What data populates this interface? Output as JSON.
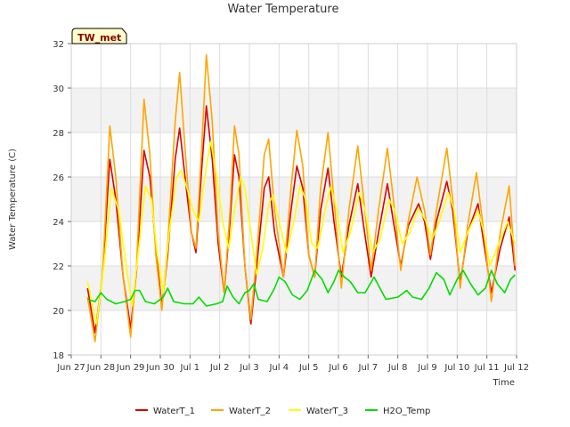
{
  "chart_data": {
    "type": "line",
    "title": "Water Temperature",
    "xlabel": "Time",
    "ylabel": "Water Temperature (C)",
    "badge": "TW_met",
    "x_ticks": [
      "Jun 27",
      "Jun 28",
      "Jun 29",
      "Jun 30",
      "Jul 1",
      "Jul 2",
      "Jul 3",
      "Jul 4",
      "Jul 5",
      "Jul 6",
      "Jul 7",
      "Jul 8",
      "Jul 9",
      "Jul 10",
      "Jul 11",
      "Jul 12"
    ],
    "y_ticks": [
      18,
      20,
      22,
      24,
      26,
      28,
      30,
      32
    ],
    "xlim": [
      0,
      15
    ],
    "ylim": [
      18,
      32
    ],
    "grid": true,
    "legend_position": "bottom",
    "series": [
      {
        "name": "WaterT_1",
        "color": "#dd0000",
        "points": [
          [
            0.55,
            21.0
          ],
          [
            0.8,
            19.0
          ],
          [
            1.05,
            21.5
          ],
          [
            1.3,
            26.8
          ],
          [
            1.5,
            25.0
          ],
          [
            1.75,
            21.5
          ],
          [
            2.0,
            19.2
          ],
          [
            2.2,
            21.8
          ],
          [
            2.45,
            27.2
          ],
          [
            2.65,
            26.0
          ],
          [
            2.85,
            22.8
          ],
          [
            3.05,
            20.2
          ],
          [
            3.25,
            22.5
          ],
          [
            3.5,
            26.8
          ],
          [
            3.65,
            28.2
          ],
          [
            3.85,
            25.8
          ],
          [
            4.05,
            23.5
          ],
          [
            4.2,
            22.6
          ],
          [
            4.4,
            26.5
          ],
          [
            4.55,
            29.2
          ],
          [
            4.75,
            26.8
          ],
          [
            4.95,
            23.0
          ],
          [
            5.15,
            20.8
          ],
          [
            5.35,
            24.0
          ],
          [
            5.5,
            27.0
          ],
          [
            5.65,
            26.0
          ],
          [
            5.85,
            22.0
          ],
          [
            6.05,
            19.4
          ],
          [
            6.25,
            22.0
          ],
          [
            6.5,
            25.5
          ],
          [
            6.65,
            26.0
          ],
          [
            6.85,
            23.5
          ],
          [
            7.15,
            21.5
          ],
          [
            7.4,
            24.5
          ],
          [
            7.6,
            26.5
          ],
          [
            7.8,
            25.5
          ],
          [
            8.0,
            22.5
          ],
          [
            8.2,
            21.5
          ],
          [
            8.4,
            24.5
          ],
          [
            8.65,
            26.4
          ],
          [
            8.85,
            24.0
          ],
          [
            9.1,
            21.5
          ],
          [
            9.35,
            23.8
          ],
          [
            9.65,
            25.7
          ],
          [
            9.85,
            23.8
          ],
          [
            10.1,
            21.5
          ],
          [
            10.35,
            23.5
          ],
          [
            10.65,
            25.7
          ],
          [
            10.85,
            24.0
          ],
          [
            11.1,
            22.0
          ],
          [
            11.35,
            23.8
          ],
          [
            11.7,
            24.8
          ],
          [
            11.9,
            24.0
          ],
          [
            12.1,
            22.3
          ],
          [
            12.3,
            24.0
          ],
          [
            12.65,
            25.8
          ],
          [
            12.85,
            24.5
          ],
          [
            13.1,
            21.2
          ],
          [
            13.35,
            23.5
          ],
          [
            13.7,
            24.8
          ],
          [
            13.9,
            23.0
          ],
          [
            14.15,
            20.8
          ],
          [
            14.45,
            22.8
          ],
          [
            14.75,
            24.2
          ],
          [
            14.95,
            21.8
          ]
        ]
      },
      {
        "name": "WaterT_2",
        "color": "#ffa500",
        "points": [
          [
            0.55,
            20.6
          ],
          [
            0.8,
            18.6
          ],
          [
            1.05,
            21.5
          ],
          [
            1.3,
            28.3
          ],
          [
            1.5,
            26.0
          ],
          [
            1.75,
            21.5
          ],
          [
            2.0,
            18.8
          ],
          [
            2.2,
            22.0
          ],
          [
            2.45,
            29.5
          ],
          [
            2.65,
            27.0
          ],
          [
            2.85,
            22.5
          ],
          [
            3.05,
            20.0
          ],
          [
            3.25,
            23.0
          ],
          [
            3.5,
            28.5
          ],
          [
            3.65,
            30.7
          ],
          [
            3.85,
            27.0
          ],
          [
            4.05,
            23.5
          ],
          [
            4.2,
            22.8
          ],
          [
            4.4,
            27.5
          ],
          [
            4.55,
            31.5
          ],
          [
            4.75,
            28.5
          ],
          [
            4.95,
            23.5
          ],
          [
            5.15,
            20.8
          ],
          [
            5.35,
            24.5
          ],
          [
            5.5,
            28.3
          ],
          [
            5.65,
            27.0
          ],
          [
            5.85,
            22.0
          ],
          [
            6.05,
            19.6
          ],
          [
            6.25,
            22.5
          ],
          [
            6.5,
            27.0
          ],
          [
            6.65,
            27.7
          ],
          [
            6.85,
            24.5
          ],
          [
            7.15,
            21.5
          ],
          [
            7.4,
            25.5
          ],
          [
            7.6,
            28.1
          ],
          [
            7.8,
            26.5
          ],
          [
            8.0,
            22.5
          ],
          [
            8.2,
            21.5
          ],
          [
            8.4,
            25.5
          ],
          [
            8.65,
            28.0
          ],
          [
            8.85,
            25.0
          ],
          [
            9.1,
            21.0
          ],
          [
            9.35,
            24.5
          ],
          [
            9.65,
            27.4
          ],
          [
            9.85,
            25.0
          ],
          [
            10.1,
            21.8
          ],
          [
            10.35,
            24.5
          ],
          [
            10.65,
            27.3
          ],
          [
            10.85,
            25.0
          ],
          [
            11.1,
            21.8
          ],
          [
            11.35,
            24.0
          ],
          [
            11.65,
            26.0
          ],
          [
            11.9,
            24.5
          ],
          [
            12.1,
            22.5
          ],
          [
            12.3,
            24.5
          ],
          [
            12.65,
            27.3
          ],
          [
            12.85,
            25.0
          ],
          [
            13.1,
            21.0
          ],
          [
            13.35,
            23.8
          ],
          [
            13.65,
            26.2
          ],
          [
            13.9,
            23.5
          ],
          [
            14.15,
            20.4
          ],
          [
            14.45,
            23.5
          ],
          [
            14.75,
            25.6
          ],
          [
            14.95,
            22.0
          ]
        ]
      },
      {
        "name": "WaterT_3",
        "color": "#ffff00",
        "points": [
          [
            0.55,
            21.3
          ],
          [
            0.85,
            19.4
          ],
          [
            1.1,
            22.0
          ],
          [
            1.35,
            25.5
          ],
          [
            1.6,
            24.5
          ],
          [
            1.85,
            22.0
          ],
          [
            2.05,
            20.2
          ],
          [
            2.25,
            22.5
          ],
          [
            2.5,
            25.6
          ],
          [
            2.7,
            25.0
          ],
          [
            2.9,
            22.5
          ],
          [
            3.1,
            20.8
          ],
          [
            3.3,
            23.5
          ],
          [
            3.55,
            26.0
          ],
          [
            3.7,
            26.3
          ],
          [
            3.9,
            25.5
          ],
          [
            4.1,
            24.5
          ],
          [
            4.3,
            24.0
          ],
          [
            4.55,
            26.5
          ],
          [
            4.7,
            27.6
          ],
          [
            4.9,
            26.0
          ],
          [
            5.1,
            24.0
          ],
          [
            5.3,
            22.8
          ],
          [
            5.5,
            24.5
          ],
          [
            5.7,
            26.0
          ],
          [
            5.85,
            25.5
          ],
          [
            6.05,
            23.5
          ],
          [
            6.25,
            21.6
          ],
          [
            6.45,
            22.8
          ],
          [
            6.65,
            24.8
          ],
          [
            6.8,
            25.2
          ],
          [
            7.0,
            24.0
          ],
          [
            7.25,
            22.6
          ],
          [
            7.5,
            24.0
          ],
          [
            7.7,
            25.6
          ],
          [
            7.9,
            25.0
          ],
          [
            8.1,
            23.0
          ],
          [
            8.3,
            22.8
          ],
          [
            8.55,
            24.5
          ],
          [
            8.75,
            25.6
          ],
          [
            8.95,
            24.5
          ],
          [
            9.15,
            22.6
          ],
          [
            9.4,
            23.5
          ],
          [
            9.7,
            25.3
          ],
          [
            9.9,
            24.5
          ],
          [
            10.15,
            22.6
          ],
          [
            10.4,
            23.2
          ],
          [
            10.7,
            25.0
          ],
          [
            10.9,
            24.5
          ],
          [
            11.15,
            23.0
          ],
          [
            11.4,
            23.5
          ],
          [
            11.7,
            24.6
          ],
          [
            11.95,
            24.0
          ],
          [
            12.15,
            23.2
          ],
          [
            12.4,
            24.0
          ],
          [
            12.7,
            25.3
          ],
          [
            12.9,
            24.5
          ],
          [
            13.1,
            22.6
          ],
          [
            13.35,
            23.5
          ],
          [
            13.7,
            24.5
          ],
          [
            13.9,
            23.5
          ],
          [
            14.1,
            22.0
          ],
          [
            14.4,
            23.0
          ],
          [
            14.7,
            24.0
          ],
          [
            14.95,
            23.0
          ]
        ]
      },
      {
        "name": "H2O_Temp",
        "color": "#00dd00",
        "points": [
          [
            0.55,
            20.5
          ],
          [
            0.8,
            20.4
          ],
          [
            1.0,
            20.8
          ],
          [
            1.2,
            20.5
          ],
          [
            1.5,
            20.3
          ],
          [
            1.8,
            20.4
          ],
          [
            2.0,
            20.5
          ],
          [
            2.15,
            20.9
          ],
          [
            2.3,
            20.9
          ],
          [
            2.5,
            20.4
          ],
          [
            2.8,
            20.3
          ],
          [
            3.1,
            20.6
          ],
          [
            3.25,
            21.0
          ],
          [
            3.45,
            20.4
          ],
          [
            3.8,
            20.3
          ],
          [
            4.1,
            20.3
          ],
          [
            4.3,
            20.6
          ],
          [
            4.55,
            20.2
          ],
          [
            4.9,
            20.3
          ],
          [
            5.1,
            20.4
          ],
          [
            5.25,
            21.1
          ],
          [
            5.45,
            20.6
          ],
          [
            5.65,
            20.3
          ],
          [
            5.85,
            20.8
          ],
          [
            6.0,
            20.9
          ],
          [
            6.15,
            21.2
          ],
          [
            6.3,
            20.5
          ],
          [
            6.6,
            20.4
          ],
          [
            6.85,
            21.0
          ],
          [
            7.0,
            21.5
          ],
          [
            7.2,
            21.3
          ],
          [
            7.45,
            20.7
          ],
          [
            7.7,
            20.5
          ],
          [
            7.95,
            20.9
          ],
          [
            8.2,
            21.8
          ],
          [
            8.45,
            21.4
          ],
          [
            8.65,
            20.8
          ],
          [
            8.85,
            21.3
          ],
          [
            9.0,
            21.8
          ],
          [
            9.2,
            21.5
          ],
          [
            9.4,
            21.3
          ],
          [
            9.65,
            20.8
          ],
          [
            9.9,
            20.8
          ],
          [
            10.2,
            21.5
          ],
          [
            10.4,
            21.0
          ],
          [
            10.6,
            20.5
          ],
          [
            11.0,
            20.6
          ],
          [
            11.3,
            20.9
          ],
          [
            11.5,
            20.6
          ],
          [
            11.8,
            20.5
          ],
          [
            12.05,
            21.0
          ],
          [
            12.3,
            21.7
          ],
          [
            12.55,
            21.4
          ],
          [
            12.75,
            20.7
          ],
          [
            13.0,
            21.4
          ],
          [
            13.2,
            21.8
          ],
          [
            13.45,
            21.2
          ],
          [
            13.7,
            20.7
          ],
          [
            13.95,
            21.0
          ],
          [
            14.15,
            21.8
          ],
          [
            14.35,
            21.2
          ],
          [
            14.6,
            20.8
          ],
          [
            14.8,
            21.4
          ],
          [
            14.95,
            21.6
          ]
        ]
      }
    ]
  }
}
